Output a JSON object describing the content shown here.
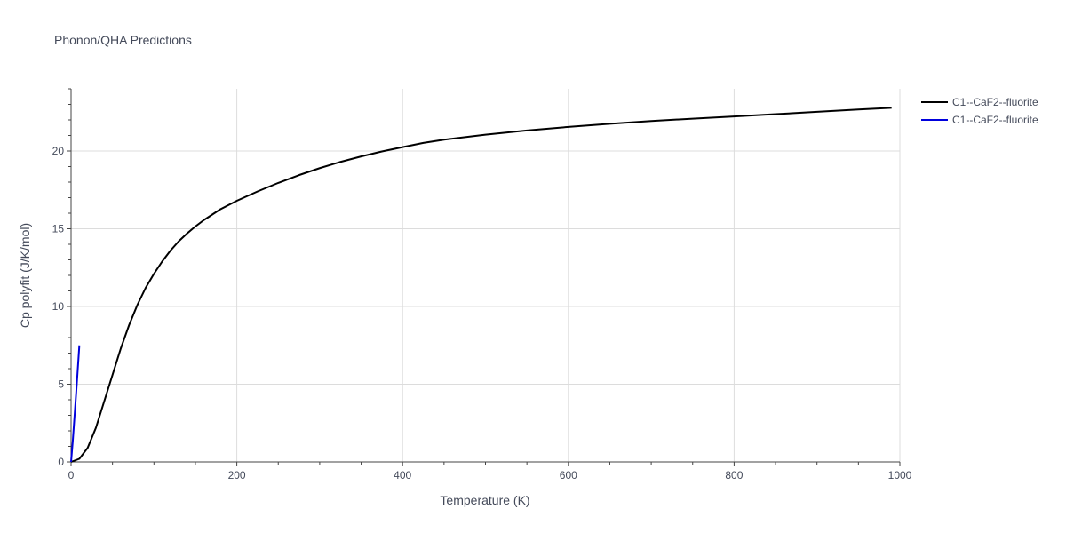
{
  "chart_data": {
    "type": "line",
    "title": "Phonon/QHA Predictions",
    "xlabel": "Temperature (K)",
    "ylabel": "Cp polyfit (J/K/mol)",
    "xlim": [
      0,
      1000
    ],
    "ylim": [
      0,
      24
    ],
    "xticks": [
      0,
      200,
      400,
      600,
      800,
      1000
    ],
    "yticks": [
      0,
      5,
      10,
      15,
      20
    ],
    "grid": true,
    "legend_position": "top-right",
    "series": [
      {
        "name": "C1--CaF2--fluorite",
        "color": "#000000",
        "x": [
          0,
          10,
          20,
          30,
          40,
          50,
          60,
          70,
          80,
          90,
          100,
          110,
          120,
          130,
          140,
          150,
          160,
          170,
          180,
          200,
          225,
          250,
          275,
          300,
          325,
          350,
          375,
          400,
          425,
          450,
          500,
          550,
          600,
          650,
          700,
          750,
          800,
          850,
          900,
          950,
          990
        ],
        "y": [
          0,
          0.2,
          0.9,
          2.2,
          3.9,
          5.6,
          7.3,
          8.8,
          10.1,
          11.2,
          12.1,
          12.9,
          13.6,
          14.2,
          14.7,
          15.15,
          15.55,
          15.9,
          16.25,
          16.8,
          17.4,
          17.95,
          18.45,
          18.9,
          19.3,
          19.65,
          19.97,
          20.25,
          20.52,
          20.73,
          21.05,
          21.32,
          21.55,
          21.75,
          21.93,
          22.08,
          22.22,
          22.37,
          22.52,
          22.67,
          22.78
        ]
      },
      {
        "name": "C1--CaF2--fluorite",
        "color": "#0000dd",
        "x": [
          0,
          2,
          4,
          6,
          8,
          10
        ],
        "y": [
          0,
          1.3,
          2.8,
          4.3,
          5.9,
          7.5
        ]
      }
    ]
  }
}
